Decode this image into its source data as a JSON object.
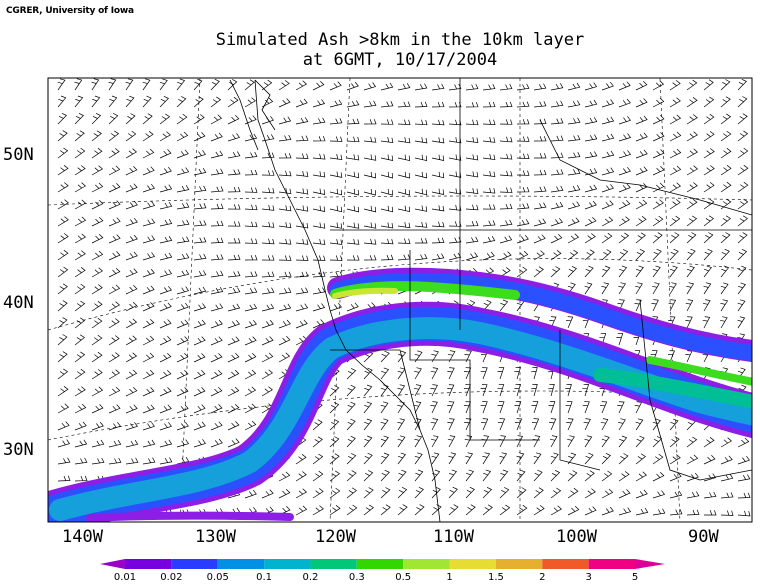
{
  "credit": "CGRER, University of Iowa",
  "title_line1": "Simulated Ash >8km in the 10km layer",
  "title_line2": "at 6GMT, 10/17/2004",
  "lat_labels": [
    "50N",
    "40N",
    "30N"
  ],
  "lon_labels": [
    "140W",
    "130W",
    "120W",
    "110W",
    "100W",
    "90W"
  ],
  "colorbar": {
    "labels": [
      "0.01",
      "0.02",
      "0.05",
      "0.1",
      "0.2",
      "0.3",
      "0.5",
      "1",
      "1.5",
      "2",
      "3",
      "5"
    ],
    "colors": [
      "#9a00c8",
      "#7800e0",
      "#2a3cff",
      "#0090e6",
      "#00b4d0",
      "#00c878",
      "#32d700",
      "#a0e632",
      "#e6dc32",
      "#e6af2d",
      "#f05a28",
      "#f00082",
      "#dc0096"
    ]
  },
  "colors": {
    "plume_outer": "#8c1ee6",
    "plume_mid": "#2b50ff",
    "plume_inner": "#15a0dc",
    "plume_core": "#00be96",
    "plume_hot": "#3cdc1e",
    "plume_peak": "#c8e632",
    "wind_barb": "#000000",
    "coast": "#000000"
  }
}
